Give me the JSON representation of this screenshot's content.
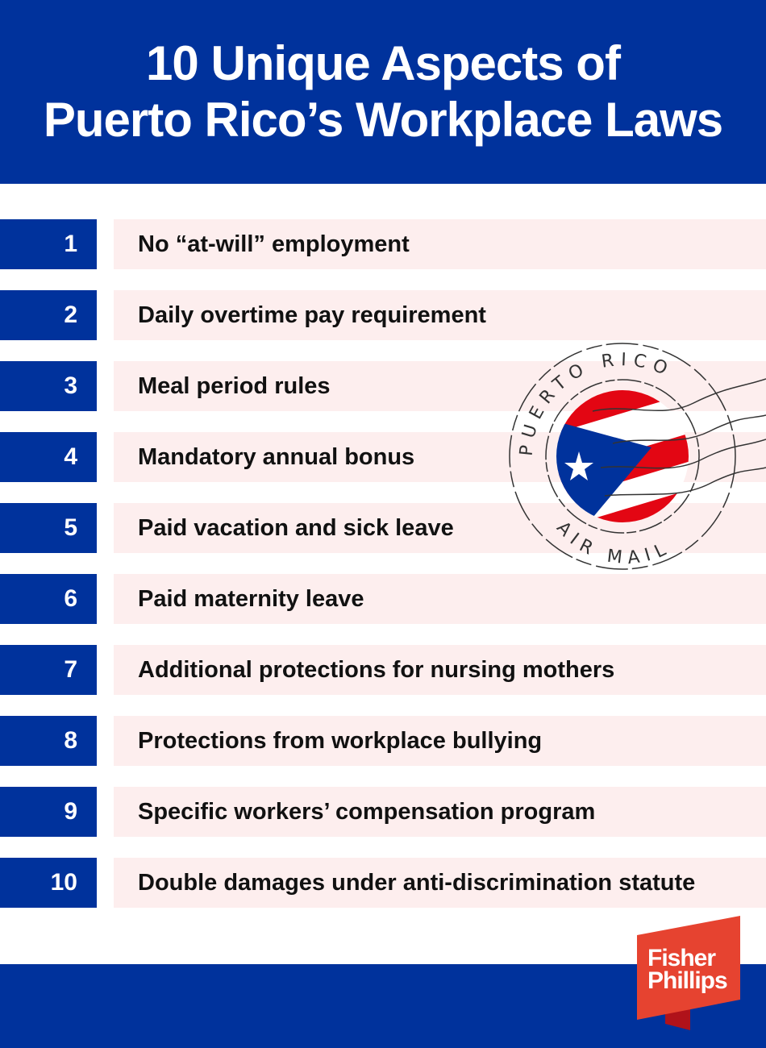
{
  "header": {
    "title_line1": "10 Unique Aspects of",
    "title_line2": "Puerto Rico’s Workplace Laws"
  },
  "items": [
    {
      "number": "1",
      "label": "No “at-will” employment"
    },
    {
      "number": "2",
      "label": "Daily overtime pay requirement"
    },
    {
      "number": "3",
      "label": "Meal period rules"
    },
    {
      "number": "4",
      "label": "Mandatory annual bonus"
    },
    {
      "number": "5",
      "label": "Paid vacation and sick leave"
    },
    {
      "number": "6",
      "label": "Paid maternity leave"
    },
    {
      "number": "7",
      "label": "Additional protections for nursing mothers"
    },
    {
      "number": "8",
      "label": "Protections from workplace bullying"
    },
    {
      "number": "9",
      "label": "Specific workers’ compensation program"
    },
    {
      "number": "10",
      "label": "Double damages under anti-discrimination statute"
    }
  ],
  "stamp": {
    "top_text": "PUERTO RICO",
    "bottom_text": "AIR MAIL"
  },
  "logo": {
    "line1": "Fisher",
    "line2": "Phillips"
  },
  "colors": {
    "navy": "#00329c",
    "row_bg": "#fdeeee",
    "flag_red": "#e30613",
    "logo_red": "#e64330",
    "logo_fold": "#b0121a"
  }
}
